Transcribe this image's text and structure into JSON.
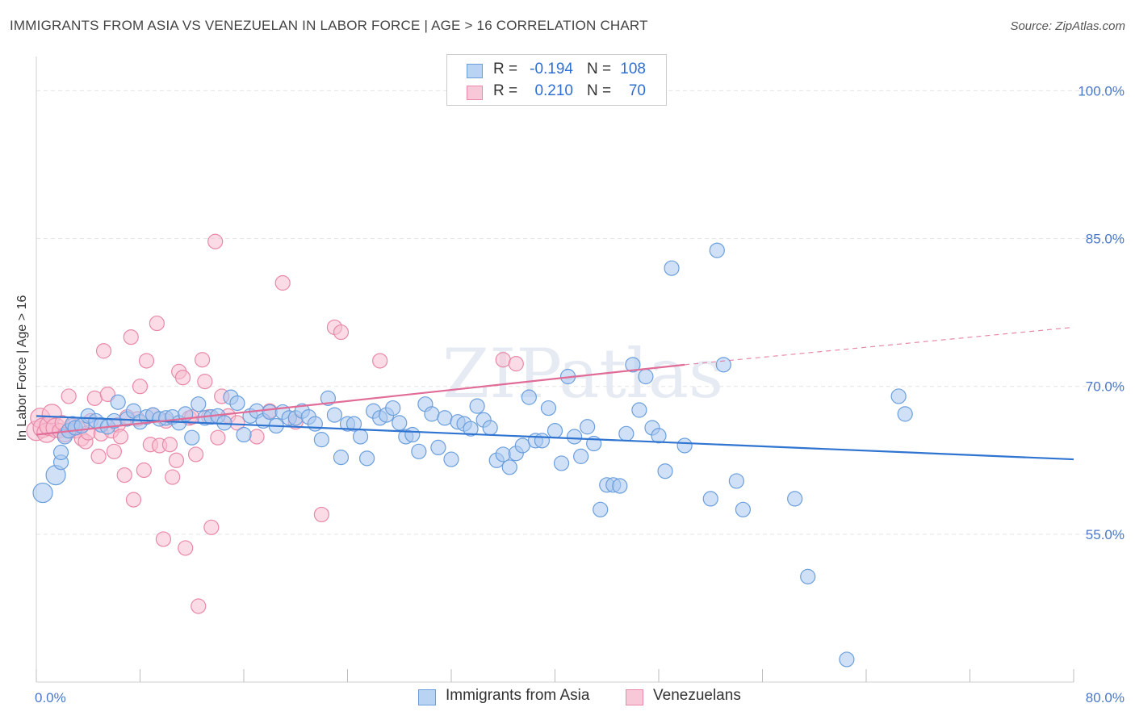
{
  "title": "IMMIGRANTS FROM ASIA VS VENEZUELAN IN LABOR FORCE | AGE > 16 CORRELATION CHART",
  "source": "Source: ZipAtlas.com",
  "watermark": "ZIPatlas",
  "colors": {
    "blue_fill": "#a9c8f0",
    "blue_stroke": "#6b9fdc",
    "blue_line": "#2f74d0",
    "pink_fill": "#f7bdd0",
    "pink_stroke": "#e889a8",
    "pink_line": "#e06c97",
    "grid": "#e3e3e3",
    "tick_label": "#4a78c8"
  },
  "legend": {
    "rows": [
      {
        "r_label": "R =",
        "r_value": "-0.194",
        "n_label": "N =",
        "n_value": "108"
      },
      {
        "r_label": "R =",
        "r_value": "0.210",
        "n_label": "N =",
        "n_value": "70"
      }
    ]
  },
  "bottom_legend": [
    "Immigrants from Asia",
    "Venezuelans"
  ],
  "chart_data": {
    "type": "scatter",
    "title": "IMMIGRANTS FROM ASIA VS VENEZUELAN IN LABOR FORCE | AGE > 16 CORRELATION CHART",
    "xlabel": "",
    "ylabel": "In Labor Force | Age > 16",
    "xlim": [
      0,
      80
    ],
    "ylim": [
      40,
      102
    ],
    "x_tick_labels": [
      "0.0%",
      "80.0%"
    ],
    "y_ticks": [
      55,
      70,
      85,
      100
    ],
    "y_tick_labels": [
      "55.0%",
      "70.0%",
      "85.0%",
      "100.0%"
    ],
    "grid": true,
    "legend_placement": "top-center",
    "series": [
      {
        "name": "Immigrants from Asia",
        "r": -0.194,
        "n": 108,
        "trend": {
          "x": [
            0,
            80
          ],
          "y": [
            67.0,
            62.6
          ]
        },
        "points": [
          [
            0.5,
            59.2
          ],
          [
            1.5,
            61.0
          ],
          [
            1.9,
            62.3
          ],
          [
            1.9,
            63.3
          ],
          [
            2.2,
            64.9
          ],
          [
            2.5,
            65.5
          ],
          [
            2.8,
            66.2
          ],
          [
            3.0,
            65.8
          ],
          [
            3.5,
            66.0
          ],
          [
            4.0,
            67.0
          ],
          [
            4.6,
            66.5
          ],
          [
            5.0,
            66.1
          ],
          [
            5.5,
            65.9
          ],
          [
            6.0,
            66.5
          ],
          [
            6.3,
            68.4
          ],
          [
            7.0,
            66.7
          ],
          [
            7.5,
            67.5
          ],
          [
            8.0,
            66.4
          ],
          [
            8.5,
            66.9
          ],
          [
            9.0,
            67.1
          ],
          [
            9.5,
            66.7
          ],
          [
            10.0,
            66.8
          ],
          [
            10.5,
            66.9
          ],
          [
            11.0,
            66.3
          ],
          [
            11.5,
            67.2
          ],
          [
            12.0,
            64.8
          ],
          [
            12.5,
            68.2
          ],
          [
            13.0,
            66.8
          ],
          [
            13.5,
            66.9
          ],
          [
            14.0,
            67.0
          ],
          [
            14.5,
            66.3
          ],
          [
            15.0,
            68.9
          ],
          [
            15.5,
            68.3
          ],
          [
            16.0,
            65.1
          ],
          [
            16.5,
            67.0
          ],
          [
            17.0,
            67.5
          ],
          [
            17.5,
            66.5
          ],
          [
            18.0,
            67.4
          ],
          [
            18.5,
            66.0
          ],
          [
            19.0,
            67.4
          ],
          [
            19.5,
            66.8
          ],
          [
            20.0,
            66.8
          ],
          [
            20.5,
            67.5
          ],
          [
            21.0,
            66.9
          ],
          [
            21.5,
            66.2
          ],
          [
            22.0,
            64.6
          ],
          [
            22.5,
            68.8
          ],
          [
            23.0,
            67.1
          ],
          [
            23.5,
            62.8
          ],
          [
            24.0,
            66.2
          ],
          [
            24.5,
            66.2
          ],
          [
            25.0,
            64.9
          ],
          [
            25.5,
            62.7
          ],
          [
            26.0,
            67.5
          ],
          [
            26.5,
            66.8
          ],
          [
            27.0,
            67.1
          ],
          [
            27.5,
            67.8
          ],
          [
            28.0,
            66.3
          ],
          [
            28.5,
            64.9
          ],
          [
            29.0,
            65.1
          ],
          [
            29.5,
            63.4
          ],
          [
            30.0,
            68.2
          ],
          [
            30.5,
            67.2
          ],
          [
            31.0,
            63.8
          ],
          [
            31.5,
            66.8
          ],
          [
            32.0,
            62.6
          ],
          [
            32.5,
            66.4
          ],
          [
            33.0,
            66.2
          ],
          [
            33.5,
            65.7
          ],
          [
            34.0,
            68.0
          ],
          [
            34.5,
            66.6
          ],
          [
            35.0,
            65.8
          ],
          [
            35.5,
            62.5
          ],
          [
            36.0,
            63.1
          ],
          [
            36.5,
            61.8
          ],
          [
            37.0,
            63.2
          ],
          [
            37.5,
            64.0
          ],
          [
            38.0,
            68.9
          ],
          [
            38.5,
            64.5
          ],
          [
            39.0,
            64.5
          ],
          [
            39.5,
            67.8
          ],
          [
            40.0,
            65.5
          ],
          [
            40.5,
            62.2
          ],
          [
            41.0,
            71.0
          ],
          [
            41.5,
            64.9
          ],
          [
            42.0,
            62.9
          ],
          [
            42.5,
            65.9
          ],
          [
            43.0,
            64.2
          ],
          [
            43.5,
            57.5
          ],
          [
            44.0,
            60.0
          ],
          [
            44.5,
            60.0
          ],
          [
            45.0,
            59.9
          ],
          [
            45.5,
            65.2
          ],
          [
            46.0,
            72.2
          ],
          [
            46.5,
            67.6
          ],
          [
            47.0,
            71.0
          ],
          [
            47.5,
            65.8
          ],
          [
            48.0,
            65.0
          ],
          [
            48.5,
            61.4
          ],
          [
            49.0,
            82.0
          ],
          [
            50.0,
            64.0
          ],
          [
            52.0,
            58.6
          ],
          [
            52.5,
            83.8
          ],
          [
            53.0,
            72.2
          ],
          [
            54.0,
            60.4
          ],
          [
            54.5,
            57.5
          ],
          [
            58.5,
            58.6
          ],
          [
            59.5,
            50.7
          ],
          [
            62.5,
            42.3
          ],
          [
            66.5,
            69.0
          ],
          [
            67.0,
            67.2
          ]
        ]
      },
      {
        "name": "Venezuelans",
        "r": 0.21,
        "n": 70,
        "trend": {
          "x": [
            0,
            50
          ],
          "y": [
            65.1,
            72.2
          ]
        },
        "trend_dashed": {
          "x": [
            50,
            80
          ],
          "y": [
            72.2,
            76.0
          ]
        },
        "points": [
          [
            0.0,
            65.5
          ],
          [
            0.3,
            66.8
          ],
          [
            0.5,
            65.8
          ],
          [
            0.8,
            65.3
          ],
          [
            1.0,
            66.0
          ],
          [
            1.2,
            67.2
          ],
          [
            1.5,
            65.8
          ],
          [
            1.8,
            65.5
          ],
          [
            2.0,
            66.3
          ],
          [
            2.2,
            65.1
          ],
          [
            2.5,
            69.0
          ],
          [
            2.8,
            66.0
          ],
          [
            3.0,
            65.5
          ],
          [
            3.2,
            65.8
          ],
          [
            3.5,
            64.7
          ],
          [
            3.8,
            64.4
          ],
          [
            4.0,
            65.3
          ],
          [
            4.2,
            66.5
          ],
          [
            4.5,
            68.8
          ],
          [
            4.8,
            62.9
          ],
          [
            5.0,
            65.2
          ],
          [
            5.2,
            73.6
          ],
          [
            5.5,
            69.2
          ],
          [
            5.8,
            65.5
          ],
          [
            6.0,
            63.4
          ],
          [
            6.3,
            66.1
          ],
          [
            6.5,
            64.9
          ],
          [
            6.8,
            61.0
          ],
          [
            7.0,
            66.9
          ],
          [
            7.3,
            75.0
          ],
          [
            7.5,
            58.5
          ],
          [
            7.8,
            66.7
          ],
          [
            8.0,
            70.0
          ],
          [
            8.3,
            61.5
          ],
          [
            8.5,
            72.6
          ],
          [
            8.8,
            64.1
          ],
          [
            9.0,
            67.1
          ],
          [
            9.3,
            76.4
          ],
          [
            9.5,
            64.0
          ],
          [
            9.8,
            54.5
          ],
          [
            10.0,
            66.5
          ],
          [
            10.3,
            64.1
          ],
          [
            10.5,
            60.8
          ],
          [
            10.8,
            62.5
          ],
          [
            11.0,
            71.5
          ],
          [
            11.3,
            70.9
          ],
          [
            11.5,
            53.6
          ],
          [
            11.8,
            66.8
          ],
          [
            12.0,
            66.9
          ],
          [
            12.3,
            63.1
          ],
          [
            12.5,
            47.7
          ],
          [
            12.8,
            72.7
          ],
          [
            13.0,
            70.5
          ],
          [
            13.3,
            66.9
          ],
          [
            13.5,
            55.7
          ],
          [
            13.8,
            84.7
          ],
          [
            14.0,
            64.8
          ],
          [
            14.3,
            69.0
          ],
          [
            14.8,
            67.0
          ],
          [
            15.5,
            66.3
          ],
          [
            17.0,
            64.9
          ],
          [
            18.0,
            67.5
          ],
          [
            19.0,
            80.5
          ],
          [
            20.0,
            66.4
          ],
          [
            22.0,
            57.0
          ],
          [
            23.0,
            76.0
          ],
          [
            23.5,
            75.5
          ],
          [
            26.5,
            72.6
          ],
          [
            36.0,
            72.7
          ],
          [
            37.0,
            72.3
          ]
        ]
      }
    ]
  }
}
